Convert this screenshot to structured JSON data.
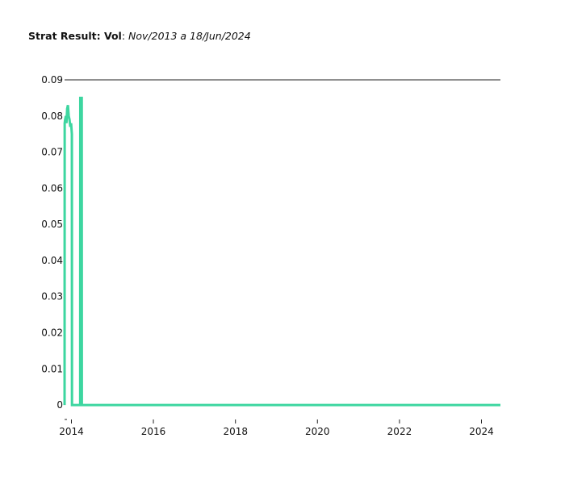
{
  "title": {
    "bold": "Strat Result: Vol",
    "sep": ": ",
    "italic": "Nov/2013 a 18/Jun/2024"
  },
  "chart_data": {
    "type": "line",
    "title": "Strat Result: Vol: Nov/2013 a 18/Jun/2024",
    "xlabel": "",
    "ylabel": "",
    "x_type": "date",
    "xlim": [
      "2013-11-01",
      "2024-06-18"
    ],
    "ylim": [
      -0.004,
      0.09
    ],
    "x_ticks": [
      "2014-01-01",
      "2016-01-01",
      "2018-01-01",
      "2020-01-01",
      "2022-01-01",
      "2024-01-01"
    ],
    "x_tick_labels": [
      "2014",
      "2016",
      "2018",
      "2020",
      "2022",
      "2024"
    ],
    "y_ticks": [
      0,
      0.01,
      0.02,
      0.03,
      0.04,
      0.05,
      0.06,
      0.07,
      0.08,
      0.09
    ],
    "y_tick_labels": [
      "0",
      "0.01",
      "0.02",
      "0.03",
      "0.04",
      "0.05",
      "0.06",
      "0.07",
      "0.08",
      "0.09"
    ],
    "grid": false,
    "line_color": "#3dd6a0",
    "series": [
      {
        "x": [
          "2013-11-01",
          "2013-11-02",
          "2013-11-06",
          "2013-11-12",
          "2013-11-18",
          "2013-11-24",
          "2013-12-01",
          "2013-12-08",
          "2013-12-15",
          "2013-12-22",
          "2013-12-29",
          "2014-01-05",
          "2014-01-06",
          "2014-01-08",
          "2014-01-10",
          "2014-01-31",
          "2014-03-20",
          "2014-03-21",
          "2014-03-25",
          "2014-03-30",
          "2014-04-03",
          "2014-04-04",
          "2014-06-01",
          "2016-01-01",
          "2018-01-01",
          "2020-01-01",
          "2022-01-01",
          "2024-01-01",
          "2024-06-18"
        ],
        "y": [
          0.0,
          0.078,
          0.079,
          0.08,
          0.078,
          0.082,
          0.083,
          0.08,
          0.079,
          0.077,
          0.078,
          0.075,
          0.0,
          0.0,
          0.0,
          0.0,
          0.0,
          0.085,
          0.085,
          0.085,
          0.085,
          0.0,
          0.0,
          0.0,
          0.0,
          0.0,
          0.0,
          0.0,
          0.0
        ]
      }
    ]
  }
}
